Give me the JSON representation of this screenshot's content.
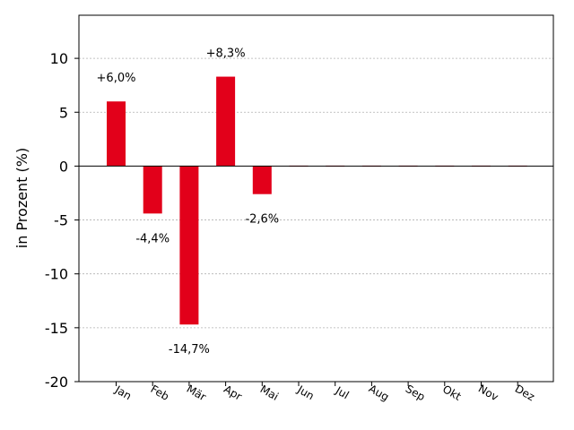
{
  "chart_data": {
    "type": "bar",
    "categories": [
      "Jan",
      "Feb",
      "Mär",
      "Apr",
      "Mai",
      "Jun",
      "Jul",
      "Aug",
      "Sep",
      "Okt",
      "Nov",
      "Dez"
    ],
    "values": [
      6.0,
      -4.4,
      -14.7,
      8.3,
      -2.6,
      0,
      0,
      0,
      0,
      0,
      0,
      0
    ],
    "data_labels": [
      "+6,0%",
      "-4,4%",
      "-14,7%",
      "+8,3%",
      "-2,6%",
      "",
      "",
      "",
      "",
      "",
      "",
      ""
    ],
    "ylabel": "in Prozent (%)",
    "yticks": [
      10,
      5,
      0,
      -5,
      -10,
      -15,
      -20
    ],
    "ytick_labels": [
      "10",
      "5",
      "0",
      "-5",
      "-10",
      "-15",
      "-20"
    ],
    "ylim": [
      -20,
      14
    ],
    "grid": "horizontal dotted",
    "bar_color": "#e2001a",
    "zero_line_color": "#000000"
  }
}
